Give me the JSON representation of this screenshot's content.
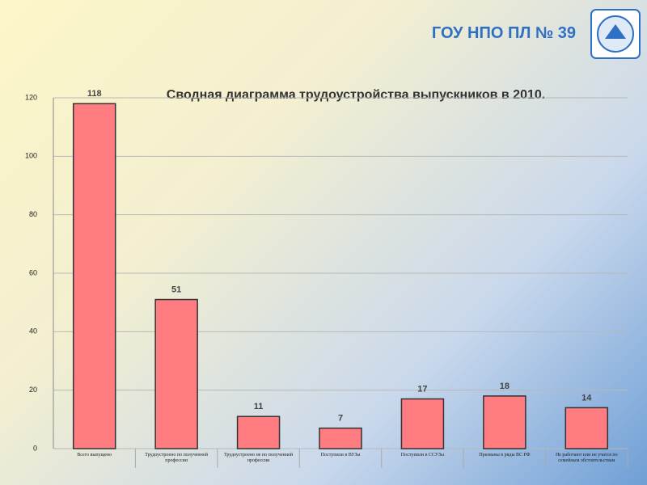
{
  "header": {
    "title": "ГОУ НПО ПЛ № 39"
  },
  "chart_data": {
    "type": "bar",
    "title": "Сводная диаграмма трудоустройства выпускников в 2010.",
    "categories": [
      "Всего выпущено",
      "Трудоустроено по полученной профессии",
      "Трудоустроено не по полученной профессии",
      "Поступили в ВУЗы",
      "Поступили в ССУЗы",
      "Призваны в ряды ВС РФ",
      "Не работают или не учатся по семейным обстоятельствам"
    ],
    "values": [
      118,
      51,
      11,
      7,
      17,
      18,
      14
    ],
    "color": "#ff7c80",
    "ylim": [
      0,
      120
    ],
    "yticks": [
      0,
      20,
      40,
      60,
      80,
      100,
      120
    ],
    "grid": true
  }
}
